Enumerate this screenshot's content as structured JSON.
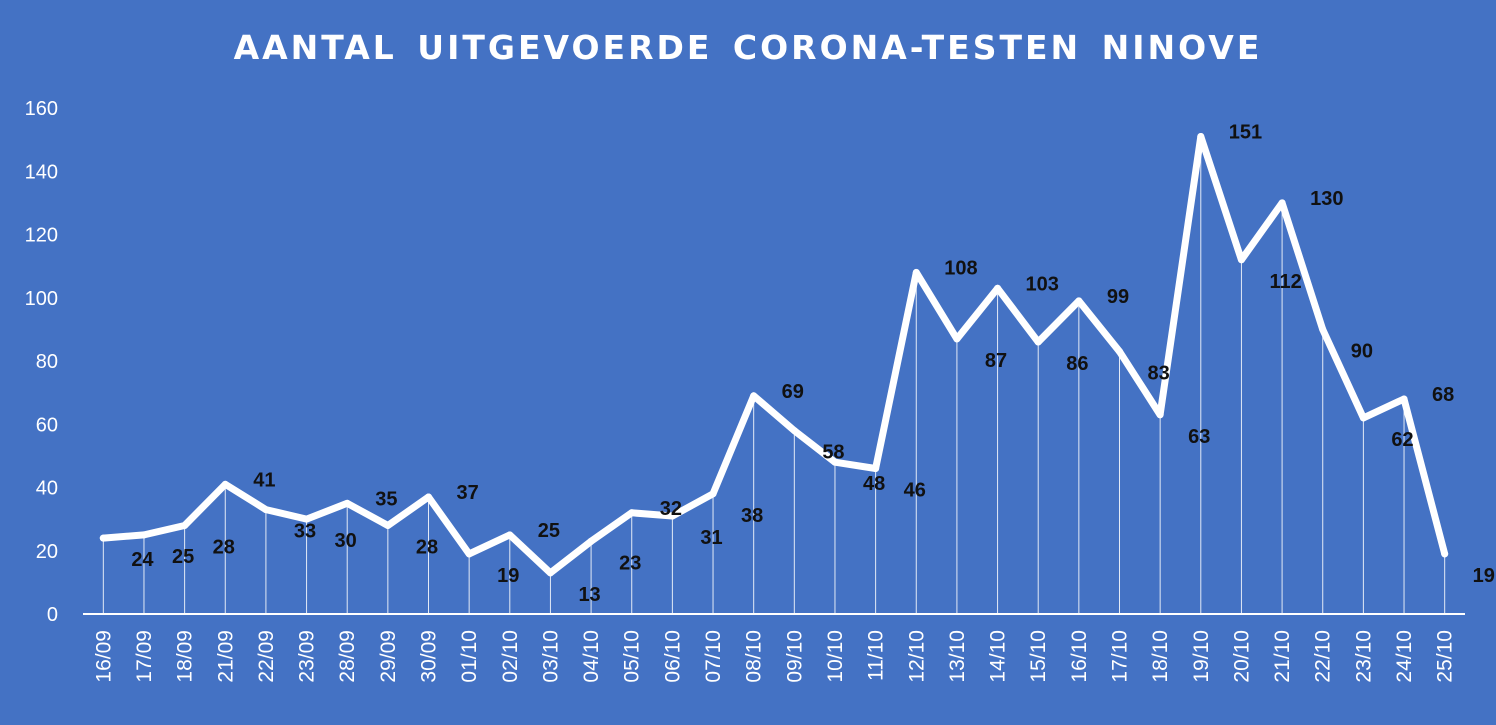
{
  "chart_data": {
    "type": "line",
    "title": "AANTAL UITGEVOERDE CORONA-TESTEN NINOVE",
    "xlabel": "",
    "ylabel": "",
    "ylim": [
      0,
      160
    ],
    "yticks": [
      0,
      20,
      40,
      60,
      80,
      100,
      120,
      140,
      160
    ],
    "grid": false,
    "drop_lines": true,
    "line_color": "#FFFFFF",
    "background_color": "#4472C4",
    "label_color": "#111111",
    "categories": [
      "16/09",
      "17/09",
      "18/09",
      "21/09",
      "22/09",
      "23/09",
      "28/09",
      "29/09",
      "30/09",
      "01/10",
      "02/10",
      "03/10",
      "04/10",
      "05/10",
      "06/10",
      "07/10",
      "08/10",
      "09/10",
      "10/10",
      "11/10",
      "12/10",
      "13/10",
      "14/10",
      "15/10",
      "16/10",
      "17/10",
      "18/10",
      "19/10",
      "20/10",
      "21/10",
      "22/10",
      "23/10",
      "24/10",
      "25/10"
    ],
    "series": [
      {
        "values": [
          24,
          25,
          28,
          41,
          33,
          30,
          35,
          28,
          37,
          19,
          25,
          13,
          23,
          32,
          31,
          38,
          69,
          58,
          48,
          46,
          108,
          87,
          103,
          86,
          99,
          83,
          63,
          151,
          112,
          130,
          90,
          62,
          68,
          19
        ]
      }
    ]
  }
}
